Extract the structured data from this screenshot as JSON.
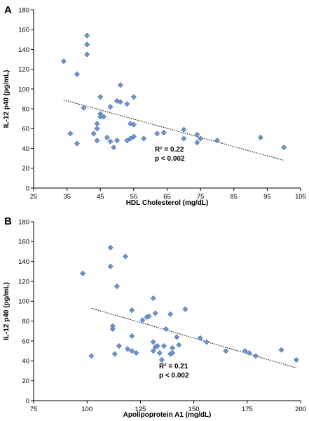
{
  "chart_data": [
    {
      "type": "scatter",
      "panel": "A",
      "xlabel": "HDL Cholesterol (mg/dL)",
      "ylabel": "IL-12 p40 (pg/mL)",
      "xlim": [
        25,
        105
      ],
      "ylim": [
        0,
        180
      ],
      "xticks": [
        25,
        35,
        45,
        55,
        65,
        75,
        85,
        95,
        105
      ],
      "yticks": [
        0,
        20,
        40,
        60,
        80,
        100,
        120,
        140,
        160,
        180
      ],
      "r2_text": "R² = 0.22",
      "p_text": "p < 0.002",
      "trendline": {
        "x": [
          34,
          100
        ],
        "y": [
          89,
          28
        ]
      },
      "points": [
        [
          34,
          128
        ],
        [
          36,
          55
        ],
        [
          38,
          115
        ],
        [
          38,
          45
        ],
        [
          40,
          81
        ],
        [
          41,
          154
        ],
        [
          41,
          145
        ],
        [
          41,
          135
        ],
        [
          43,
          55
        ],
        [
          44,
          60
        ],
        [
          44,
          65
        ],
        [
          44,
          48
        ],
        [
          45,
          92
        ],
        [
          45,
          75
        ],
        [
          45,
          72
        ],
        [
          46,
          72
        ],
        [
          47,
          51
        ],
        [
          48,
          82
        ],
        [
          48,
          47
        ],
        [
          49,
          41
        ],
        [
          50,
          88
        ],
        [
          50,
          48
        ],
        [
          51,
          104
        ],
        [
          51,
          87
        ],
        [
          53,
          85
        ],
        [
          53,
          48
        ],
        [
          54,
          65
        ],
        [
          54,
          50
        ],
        [
          55,
          92
        ],
        [
          55,
          64
        ],
        [
          55,
          52
        ],
        [
          58,
          50
        ],
        [
          62,
          55
        ],
        [
          64,
          56
        ],
        [
          70,
          59
        ],
        [
          70,
          50
        ],
        [
          74,
          54
        ],
        [
          74,
          46
        ],
        [
          75,
          50
        ],
        [
          80,
          48
        ],
        [
          93,
          51
        ],
        [
          100,
          41
        ]
      ]
    },
    {
      "type": "scatter",
      "panel": "B",
      "xlabel": "Apolipoprotein A1 (mg/dL)",
      "ylabel": "IL-12 p40 (pg/mL)",
      "xlim": [
        75,
        200
      ],
      "ylim": [
        0,
        180
      ],
      "xticks": [
        75,
        100,
        125,
        150,
        175,
        200
      ],
      "yticks": [
        0,
        20,
        40,
        60,
        80,
        100,
        120,
        140,
        160,
        180
      ],
      "r2_text": "R² = 0.21",
      "p_text": "p < 0.002",
      "trendline": {
        "x": [
          102,
          198
        ],
        "y": [
          93,
          33
        ]
      },
      "points": [
        [
          98,
          128
        ],
        [
          102,
          45
        ],
        [
          111,
          154
        ],
        [
          111,
          135
        ],
        [
          112,
          75
        ],
        [
          112,
          72
        ],
        [
          113,
          47
        ],
        [
          114,
          115
        ],
        [
          115,
          55
        ],
        [
          118,
          145
        ],
        [
          119,
          52
        ],
        [
          121,
          91
        ],
        [
          121,
          65
        ],
        [
          121,
          50
        ],
        [
          123,
          48
        ],
        [
          126,
          81
        ],
        [
          128,
          84
        ],
        [
          129,
          85
        ],
        [
          131,
          103
        ],
        [
          131,
          59
        ],
        [
          131,
          50
        ],
        [
          132,
          88
        ],
        [
          132,
          54
        ],
        [
          133,
          55
        ],
        [
          134,
          48
        ],
        [
          135,
          41
        ],
        [
          136,
          55
        ],
        [
          137,
          72
        ],
        [
          139,
          87
        ],
        [
          139,
          47
        ],
        [
          140,
          53
        ],
        [
          140,
          48
        ],
        [
          142,
          64
        ],
        [
          143,
          56
        ],
        [
          146,
          92
        ],
        [
          153,
          63
        ],
        [
          156,
          59
        ],
        [
          165,
          50
        ],
        [
          174,
          50
        ],
        [
          176,
          48
        ],
        [
          179,
          45
        ],
        [
          191,
          51
        ],
        [
          198,
          41
        ]
      ]
    }
  ]
}
